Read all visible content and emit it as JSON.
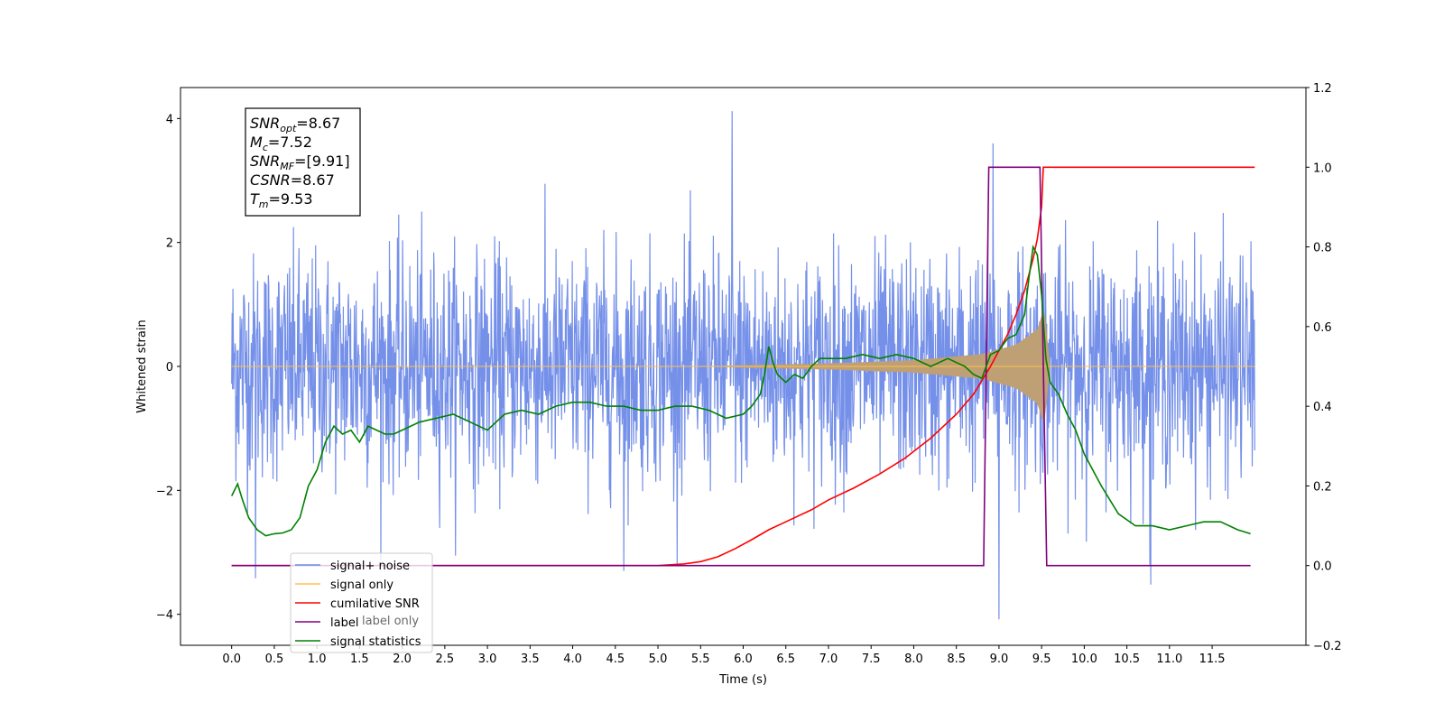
{
  "chart_data": {
    "type": "line",
    "xlabel": "Time (s)",
    "ylabel": "Whitened strain",
    "xlim": [
      -0.6,
      12.6
    ],
    "ylim": [
      -4.5,
      4.5
    ],
    "y2lim": [
      -0.2,
      1.2
    ],
    "x_ticks": [
      "0.0",
      "0.5",
      "1.0",
      "1.5",
      "2.0",
      "2.5",
      "3.0",
      "3.5",
      "4.0",
      "4.5",
      "5.0",
      "5.5",
      "6.0",
      "6.5",
      "7.0",
      "7.5",
      "8.0",
      "8.5",
      "9.0",
      "9.5",
      "10.0",
      "10.5",
      "11.0",
      "11.5"
    ],
    "y_ticks": [
      "4",
      "2",
      "0",
      "−2",
      "−4"
    ],
    "y2_ticks": [
      "1.2",
      "1.0",
      "0.8",
      "0.6",
      "0.4",
      "0.2",
      "0.0",
      "−0.2"
    ],
    "stats_box": {
      "snr_opt": {
        "main": "SNR",
        "sub": "opt",
        "value": "=8.67"
      },
      "mc": {
        "main": "M",
        "sub": "c",
        "value": "=7.52"
      },
      "snr_mf": {
        "main": "SNR",
        "sub": "MF",
        "value": "=[9.91]"
      },
      "csnr": {
        "main": "CSNR",
        "value": "=8.67"
      },
      "tm": {
        "main": "T",
        "sub": "m",
        "value": "=9.53"
      }
    },
    "legend": [
      {
        "label": "signal+ noise",
        "color": "#6e8ae8"
      },
      {
        "label": "signal only",
        "color": "#ffc04d"
      },
      {
        "label": "cumilative SNR",
        "color": "#ff0000"
      },
      {
        "label": "label",
        "color": "#800080"
      },
      {
        "label": "signal statistics",
        "color": "#008000"
      }
    ],
    "legend_hidden_label": "label only",
    "series": [
      {
        "name": "signal+ noise",
        "axis": "left",
        "color": "#6e8ae8",
        "description_samples": {
          "x_range": [
            0,
            12
          ],
          "amplitude_approx": 2.6,
          "max_spikes": [
            [
              5.87,
              4.12
            ],
            [
              9.0,
              -4.08
            ],
            [
              0.28,
              -3.42
            ],
            [
              4.6,
              -3.3
            ],
            [
              10.78,
              -3.52
            ],
            [
              8.93,
              3.6
            ]
          ]
        }
      },
      {
        "name": "signal only",
        "axis": "left",
        "color": "#ffc04d",
        "envelope": {
          "x": [
            0,
            5.5,
            6.0,
            7.0,
            8.0,
            8.8,
            9.2,
            9.45,
            9.53,
            9.6,
            12.0
          ],
          "amp": [
            0.0,
            0.0,
            0.02,
            0.05,
            0.1,
            0.2,
            0.35,
            0.6,
            0.95,
            0.0,
            0.0
          ]
        }
      },
      {
        "name": "cumilative SNR",
        "axis": "right",
        "color": "#ff0000",
        "x": [
          0.0,
          4.5,
          5.0,
          5.3,
          5.5,
          5.7,
          5.9,
          6.1,
          6.3,
          6.5,
          6.8,
          7.0,
          7.3,
          7.6,
          7.9,
          8.2,
          8.5,
          8.7,
          8.9,
          9.1,
          9.2,
          9.3,
          9.4,
          9.45,
          9.5,
          9.52,
          12.0
        ],
        "y": [
          0.0,
          0.0,
          0.0,
          0.004,
          0.01,
          0.022,
          0.042,
          0.065,
          0.09,
          0.11,
          0.14,
          0.165,
          0.195,
          0.23,
          0.27,
          0.32,
          0.38,
          0.43,
          0.5,
          0.58,
          0.63,
          0.69,
          0.77,
          0.82,
          0.9,
          1.0,
          1.0
        ]
      },
      {
        "name": "label",
        "axis": "right",
        "color": "#800080",
        "x": [
          0.0,
          8.82,
          8.88,
          9.48,
          9.56,
          11.95
        ],
        "y": [
          0.0,
          0.0,
          1.0,
          1.0,
          0.0,
          0.0
        ]
      },
      {
        "name": "signal statistics",
        "axis": "right",
        "color": "#008000",
        "x": [
          0.0,
          0.07,
          0.12,
          0.2,
          0.3,
          0.4,
          0.5,
          0.6,
          0.7,
          0.8,
          0.9,
          1.0,
          1.1,
          1.2,
          1.3,
          1.4,
          1.5,
          1.6,
          1.7,
          1.8,
          1.9,
          2.0,
          2.2,
          2.4,
          2.6,
          2.8,
          3.0,
          3.2,
          3.4,
          3.6,
          3.8,
          4.0,
          4.2,
          4.4,
          4.6,
          4.8,
          5.0,
          5.2,
          5.4,
          5.6,
          5.8,
          6.0,
          6.1,
          6.2,
          6.25,
          6.3,
          6.35,
          6.4,
          6.5,
          6.6,
          6.7,
          6.8,
          6.9,
          7.0,
          7.2,
          7.4,
          7.6,
          7.8,
          8.0,
          8.2,
          8.4,
          8.6,
          8.7,
          8.8,
          8.9,
          9.0,
          9.1,
          9.2,
          9.3,
          9.35,
          9.4,
          9.45,
          9.5,
          9.55,
          9.6,
          9.7,
          9.8,
          9.9,
          10.0,
          10.2,
          10.4,
          10.6,
          10.8,
          11.0,
          11.2,
          11.4,
          11.6,
          11.8,
          11.95
        ],
        "y": [
          0.175,
          0.205,
          0.17,
          0.12,
          0.09,
          0.075,
          0.08,
          0.082,
          0.09,
          0.12,
          0.2,
          0.24,
          0.31,
          0.35,
          0.33,
          0.34,
          0.31,
          0.35,
          0.34,
          0.33,
          0.33,
          0.34,
          0.36,
          0.37,
          0.38,
          0.36,
          0.34,
          0.38,
          0.39,
          0.38,
          0.4,
          0.41,
          0.41,
          0.4,
          0.4,
          0.39,
          0.39,
          0.4,
          0.4,
          0.39,
          0.37,
          0.38,
          0.4,
          0.43,
          0.48,
          0.55,
          0.51,
          0.48,
          0.46,
          0.48,
          0.47,
          0.5,
          0.52,
          0.52,
          0.52,
          0.53,
          0.52,
          0.53,
          0.52,
          0.5,
          0.52,
          0.5,
          0.48,
          0.47,
          0.53,
          0.54,
          0.57,
          0.58,
          0.63,
          0.72,
          0.8,
          0.78,
          0.68,
          0.52,
          0.46,
          0.43,
          0.38,
          0.34,
          0.28,
          0.2,
          0.13,
          0.1,
          0.1,
          0.09,
          0.1,
          0.11,
          0.11,
          0.09,
          0.08
        ]
      }
    ]
  }
}
